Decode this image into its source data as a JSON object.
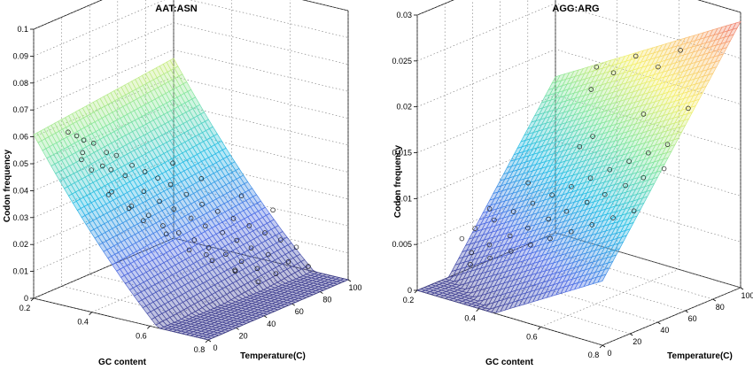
{
  "chart_data": [
    {
      "type": "scatter",
      "surface": true,
      "title": "AAT:ASN",
      "xlabel": "GC content",
      "ylabel": "Temperature(C)",
      "zlabel": "Codon frequency",
      "xlim": [
        0.2,
        0.8
      ],
      "ylim": [
        0,
        100
      ],
      "zlim": [
        0,
        0.1
      ],
      "xticks": [
        "0.2",
        "0.4",
        "0.6",
        "0.8"
      ],
      "yticks": [
        "0",
        "20",
        "40",
        "60",
        "80",
        "100"
      ],
      "zticks": [
        "0",
        "0.01",
        "0.02",
        "0.03",
        "0.04",
        "0.05",
        "0.06",
        "0.07",
        "0.08",
        "0.09",
        "0.1"
      ],
      "grid": true,
      "colormap": "jet",
      "surface_fit": {
        "intercept": 0.098,
        "gc_slope": -0.2,
        "gc_curve": 0.07,
        "temp_slope": 6e-05
      },
      "points": [
        {
          "x": 0.28,
          "y": 8,
          "z": 0.062
        },
        {
          "x": 0.29,
          "y": 12,
          "z": 0.06
        },
        {
          "x": 0.3,
          "y": 15,
          "z": 0.058
        },
        {
          "x": 0.31,
          "y": 20,
          "z": 0.056
        },
        {
          "x": 0.32,
          "y": 10,
          "z": 0.055
        },
        {
          "x": 0.33,
          "y": 25,
          "z": 0.052
        },
        {
          "x": 0.34,
          "y": 30,
          "z": 0.05
        },
        {
          "x": 0.35,
          "y": 18,
          "z": 0.049
        },
        {
          "x": 0.36,
          "y": 22,
          "z": 0.047
        },
        {
          "x": 0.37,
          "y": 35,
          "z": 0.046
        },
        {
          "x": 0.38,
          "y": 28,
          "z": 0.044
        },
        {
          "x": 0.39,
          "y": 40,
          "z": 0.043
        },
        {
          "x": 0.4,
          "y": 12,
          "z": 0.041
        },
        {
          "x": 0.41,
          "y": 45,
          "z": 0.04
        },
        {
          "x": 0.42,
          "y": 33,
          "z": 0.038
        },
        {
          "x": 0.43,
          "y": 50,
          "z": 0.037
        },
        {
          "x": 0.44,
          "y": 20,
          "z": 0.036
        },
        {
          "x": 0.45,
          "y": 38,
          "z": 0.034
        },
        {
          "x": 0.46,
          "y": 55,
          "z": 0.033
        },
        {
          "x": 0.47,
          "y": 26,
          "z": 0.032
        },
        {
          "x": 0.48,
          "y": 42,
          "z": 0.031
        },
        {
          "x": 0.49,
          "y": 60,
          "z": 0.029
        },
        {
          "x": 0.5,
          "y": 30,
          "z": 0.028
        },
        {
          "x": 0.51,
          "y": 48,
          "z": 0.027
        },
        {
          "x": 0.52,
          "y": 65,
          "z": 0.026
        },
        {
          "x": 0.53,
          "y": 35,
          "z": 0.025
        },
        {
          "x": 0.54,
          "y": 52,
          "z": 0.024
        },
        {
          "x": 0.55,
          "y": 70,
          "z": 0.023
        },
        {
          "x": 0.56,
          "y": 40,
          "z": 0.022
        },
        {
          "x": 0.57,
          "y": 58,
          "z": 0.021
        },
        {
          "x": 0.58,
          "y": 75,
          "z": 0.02
        },
        {
          "x": 0.59,
          "y": 44,
          "z": 0.019
        },
        {
          "x": 0.6,
          "y": 62,
          "z": 0.018
        },
        {
          "x": 0.61,
          "y": 80,
          "z": 0.017
        },
        {
          "x": 0.62,
          "y": 50,
          "z": 0.016
        },
        {
          "x": 0.63,
          "y": 66,
          "z": 0.015
        },
        {
          "x": 0.64,
          "y": 85,
          "z": 0.014
        },
        {
          "x": 0.65,
          "y": 55,
          "z": 0.013
        },
        {
          "x": 0.66,
          "y": 72,
          "z": 0.012
        },
        {
          "x": 0.67,
          "y": 90,
          "z": 0.011
        },
        {
          "x": 0.68,
          "y": 60,
          "z": 0.01
        },
        {
          "x": 0.7,
          "y": 78,
          "z": 0.009
        },
        {
          "x": 0.72,
          "y": 65,
          "z": 0.008
        },
        {
          "x": 0.74,
          "y": 84,
          "z": 0.007
        },
        {
          "x": 0.34,
          "y": 5,
          "z": 0.054
        },
        {
          "x": 0.36,
          "y": 8,
          "z": 0.05
        },
        {
          "x": 0.42,
          "y": 10,
          "z": 0.043
        },
        {
          "x": 0.46,
          "y": 14,
          "z": 0.037
        },
        {
          "x": 0.5,
          "y": 16,
          "z": 0.033
        },
        {
          "x": 0.55,
          "y": 22,
          "z": 0.028
        },
        {
          "x": 0.6,
          "y": 28,
          "z": 0.022
        },
        {
          "x": 0.65,
          "y": 34,
          "z": 0.018
        },
        {
          "x": 0.7,
          "y": 40,
          "z": 0.014
        },
        {
          "x": 0.75,
          "y": 46,
          "z": 0.01
        },
        {
          "x": 0.38,
          "y": 62,
          "z": 0.041
        },
        {
          "x": 0.44,
          "y": 70,
          "z": 0.035
        },
        {
          "x": 0.52,
          "y": 82,
          "z": 0.028
        },
        {
          "x": 0.58,
          "y": 92,
          "z": 0.022
        },
        {
          "x": 0.62,
          "y": 36,
          "z": 0.019
        },
        {
          "x": 0.68,
          "y": 44,
          "z": 0.013
        }
      ]
    },
    {
      "type": "scatter",
      "surface": true,
      "title": "AGG:ARG",
      "xlabel": "GC content",
      "ylabel": "Temperature(C)",
      "zlabel": "Codon frequency",
      "xlim": [
        0.2,
        0.8
      ],
      "ylim": [
        0,
        100
      ],
      "zlim": [
        0,
        0.03
      ],
      "xticks": [
        "0.2",
        "0.4",
        "0.6",
        "0.8"
      ],
      "yticks": [
        "0",
        "20",
        "40",
        "60",
        "80",
        "100"
      ],
      "zticks": [
        "0",
        "0.005",
        "0.01",
        "0.015",
        "0.02",
        "0.025",
        "0.03"
      ],
      "grid": true,
      "colormap": "jet",
      "surface_fit": {
        "intercept": -0.009,
        "gc_slope": 0.02,
        "gc_curve": 0.0,
        "temp_slope": 0.00022
      },
      "points": [
        {
          "x": 0.3,
          "y": 10,
          "z": 0.006
        },
        {
          "x": 0.32,
          "y": 15,
          "z": 0.007
        },
        {
          "x": 0.34,
          "y": 8,
          "z": 0.005
        },
        {
          "x": 0.36,
          "y": 20,
          "z": 0.008
        },
        {
          "x": 0.38,
          "y": 12,
          "z": 0.006
        },
        {
          "x": 0.4,
          "y": 25,
          "z": 0.009
        },
        {
          "x": 0.42,
          "y": 18,
          "z": 0.007
        },
        {
          "x": 0.44,
          "y": 30,
          "z": 0.01
        },
        {
          "x": 0.46,
          "y": 22,
          "z": 0.008
        },
        {
          "x": 0.48,
          "y": 35,
          "z": 0.011
        },
        {
          "x": 0.5,
          "y": 28,
          "z": 0.009
        },
        {
          "x": 0.52,
          "y": 40,
          "z": 0.012
        },
        {
          "x": 0.54,
          "y": 32,
          "z": 0.01
        },
        {
          "x": 0.56,
          "y": 45,
          "z": 0.013
        },
        {
          "x": 0.58,
          "y": 38,
          "z": 0.011
        },
        {
          "x": 0.6,
          "y": 50,
          "z": 0.014
        },
        {
          "x": 0.62,
          "y": 42,
          "z": 0.012
        },
        {
          "x": 0.64,
          "y": 55,
          "z": 0.015
        },
        {
          "x": 0.66,
          "y": 48,
          "z": 0.013
        },
        {
          "x": 0.68,
          "y": 60,
          "z": 0.016
        },
        {
          "x": 0.7,
          "y": 52,
          "z": 0.014
        },
        {
          "x": 0.72,
          "y": 65,
          "z": 0.017
        },
        {
          "x": 0.74,
          "y": 58,
          "z": 0.015
        },
        {
          "x": 0.35,
          "y": 5,
          "z": 0.004
        },
        {
          "x": 0.4,
          "y": 8,
          "z": 0.005
        },
        {
          "x": 0.45,
          "y": 12,
          "z": 0.006
        },
        {
          "x": 0.5,
          "y": 15,
          "z": 0.007
        },
        {
          "x": 0.55,
          "y": 18,
          "z": 0.008
        },
        {
          "x": 0.6,
          "y": 22,
          "z": 0.009
        },
        {
          "x": 0.65,
          "y": 26,
          "z": 0.01
        },
        {
          "x": 0.7,
          "y": 30,
          "z": 0.011
        },
        {
          "x": 0.75,
          "y": 34,
          "z": 0.012
        },
        {
          "x": 0.45,
          "y": 70,
          "z": 0.02
        },
        {
          "x": 0.5,
          "y": 75,
          "z": 0.022
        },
        {
          "x": 0.55,
          "y": 80,
          "z": 0.024
        },
        {
          "x": 0.6,
          "y": 85,
          "z": 0.023
        },
        {
          "x": 0.65,
          "y": 90,
          "z": 0.025
        },
        {
          "x": 0.4,
          "y": 85,
          "z": 0.021
        },
        {
          "x": 0.58,
          "y": 95,
          "z": 0.03
        },
        {
          "x": 0.38,
          "y": 40,
          "z": 0.011
        },
        {
          "x": 0.48,
          "y": 55,
          "z": 0.015
        },
        {
          "x": 0.62,
          "y": 70,
          "z": 0.019
        },
        {
          "x": 0.72,
          "y": 80,
          "z": 0.02
        },
        {
          "x": 0.3,
          "y": 30,
          "z": 0.008
        },
        {
          "x": 0.5,
          "y": 60,
          "z": 0.016
        }
      ]
    }
  ]
}
